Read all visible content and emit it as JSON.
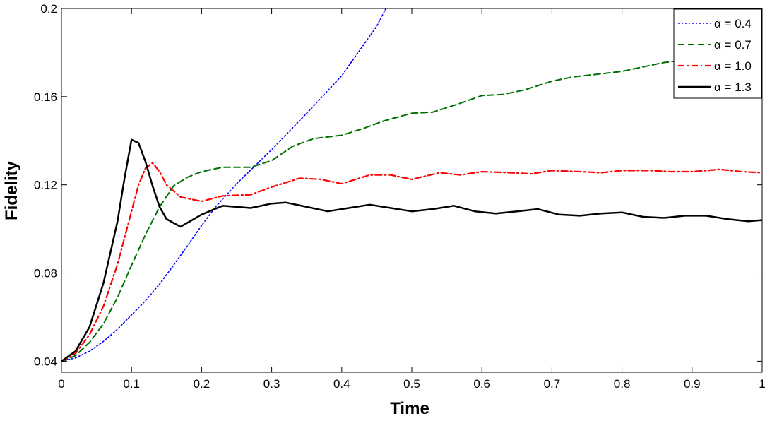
{
  "chart_data": {
    "type": "line",
    "title": "",
    "xlabel": "Time",
    "ylabel": "Fidelity",
    "xlim": [
      0,
      1
    ],
    "ylim": [
      0.035,
      0.2
    ],
    "xticks": [
      0,
      0.1,
      0.2,
      0.3,
      0.4,
      0.5,
      0.6,
      0.7,
      0.8,
      0.9,
      1
    ],
    "xtick_labels": [
      "0",
      "0.1",
      "0.2",
      "0.3",
      "0.4",
      "0.5",
      "0.6",
      "0.7",
      "0.8",
      "0.9",
      "1"
    ],
    "yticks": [
      0.04,
      0.08,
      0.12,
      0.16,
      0.2
    ],
    "ytick_labels": [
      "0.04",
      "0.08",
      "0.12",
      "0.16",
      "0.2"
    ],
    "grid": false,
    "legend_position": "top-right",
    "series": [
      {
        "name": "α = 0.4",
        "color": "#0000ff",
        "dash": "dotted",
        "x": [
          0,
          0.02,
          0.04,
          0.06,
          0.08,
          0.1,
          0.12,
          0.14,
          0.16,
          0.18,
          0.2,
          0.22,
          0.25,
          0.3,
          0.35,
          0.4,
          0.45,
          0.463
        ],
        "y": [
          0.04,
          0.0415,
          0.0445,
          0.049,
          0.0545,
          0.061,
          0.0675,
          0.075,
          0.0835,
          0.0925,
          0.1015,
          0.11,
          0.1205,
          0.136,
          0.1525,
          0.1695,
          0.192,
          0.2
        ]
      },
      {
        "name": "α = 0.7",
        "color": "#007000",
        "dash": "dashed",
        "x": [
          0,
          0.02,
          0.04,
          0.06,
          0.08,
          0.1,
          0.12,
          0.14,
          0.16,
          0.18,
          0.2,
          0.23,
          0.27,
          0.3,
          0.33,
          0.36,
          0.4,
          0.43,
          0.46,
          0.5,
          0.53,
          0.56,
          0.6,
          0.63,
          0.66,
          0.7,
          0.73,
          0.76,
          0.8,
          0.83,
          0.86,
          0.9,
          0.93,
          0.96,
          1.0
        ],
        "y": [
          0.04,
          0.0425,
          0.0485,
          0.057,
          0.069,
          0.0835,
          0.0975,
          0.11,
          0.1195,
          0.1235,
          0.126,
          0.128,
          0.128,
          0.131,
          0.1375,
          0.141,
          0.1425,
          0.1455,
          0.149,
          0.1525,
          0.153,
          0.156,
          0.1605,
          0.161,
          0.163,
          0.167,
          0.169,
          0.17,
          0.1715,
          0.1735,
          0.1755,
          0.177,
          0.178,
          0.1805,
          0.1825
        ]
      },
      {
        "name": "α = 1.0",
        "color": "#ff0000",
        "dash": "dashdot",
        "x": [
          0,
          0.02,
          0.04,
          0.06,
          0.08,
          0.1,
          0.11,
          0.12,
          0.13,
          0.14,
          0.15,
          0.17,
          0.2,
          0.23,
          0.27,
          0.3,
          0.34,
          0.37,
          0.4,
          0.44,
          0.47,
          0.5,
          0.54,
          0.57,
          0.6,
          0.64,
          0.67,
          0.7,
          0.74,
          0.77,
          0.8,
          0.84,
          0.87,
          0.9,
          0.94,
          0.97,
          1.0
        ],
        "y": [
          0.04,
          0.0435,
          0.052,
          0.065,
          0.084,
          0.108,
          0.12,
          0.1275,
          0.13,
          0.126,
          0.12,
          0.1145,
          0.1125,
          0.115,
          0.1155,
          0.119,
          0.123,
          0.1225,
          0.1205,
          0.1245,
          0.1245,
          0.1225,
          0.1255,
          0.1245,
          0.126,
          0.1255,
          0.125,
          0.1265,
          0.126,
          0.1255,
          0.1265,
          0.1265,
          0.126,
          0.126,
          0.127,
          0.126,
          0.1255
        ]
      },
      {
        "name": "α = 1.3",
        "color": "#000000",
        "dash": "solid",
        "x": [
          0,
          0.02,
          0.04,
          0.06,
          0.08,
          0.09,
          0.1,
          0.11,
          0.12,
          0.13,
          0.14,
          0.15,
          0.17,
          0.2,
          0.23,
          0.27,
          0.3,
          0.32,
          0.35,
          0.38,
          0.41,
          0.44,
          0.47,
          0.5,
          0.53,
          0.56,
          0.59,
          0.62,
          0.65,
          0.68,
          0.71,
          0.74,
          0.77,
          0.8,
          0.83,
          0.86,
          0.89,
          0.92,
          0.95,
          0.98,
          1.0
        ],
        "y": [
          0.04,
          0.0445,
          0.0555,
          0.0755,
          0.1035,
          0.123,
          0.1405,
          0.139,
          0.1305,
          0.1195,
          0.11,
          0.1045,
          0.101,
          0.1065,
          0.1105,
          0.1095,
          0.1115,
          0.112,
          0.11,
          0.108,
          0.1095,
          0.111,
          0.1095,
          0.108,
          0.109,
          0.1105,
          0.108,
          0.107,
          0.108,
          0.109,
          0.1065,
          0.106,
          0.107,
          0.1075,
          0.1055,
          0.105,
          0.106,
          0.106,
          0.1045,
          0.1035,
          0.104
        ]
      }
    ]
  }
}
